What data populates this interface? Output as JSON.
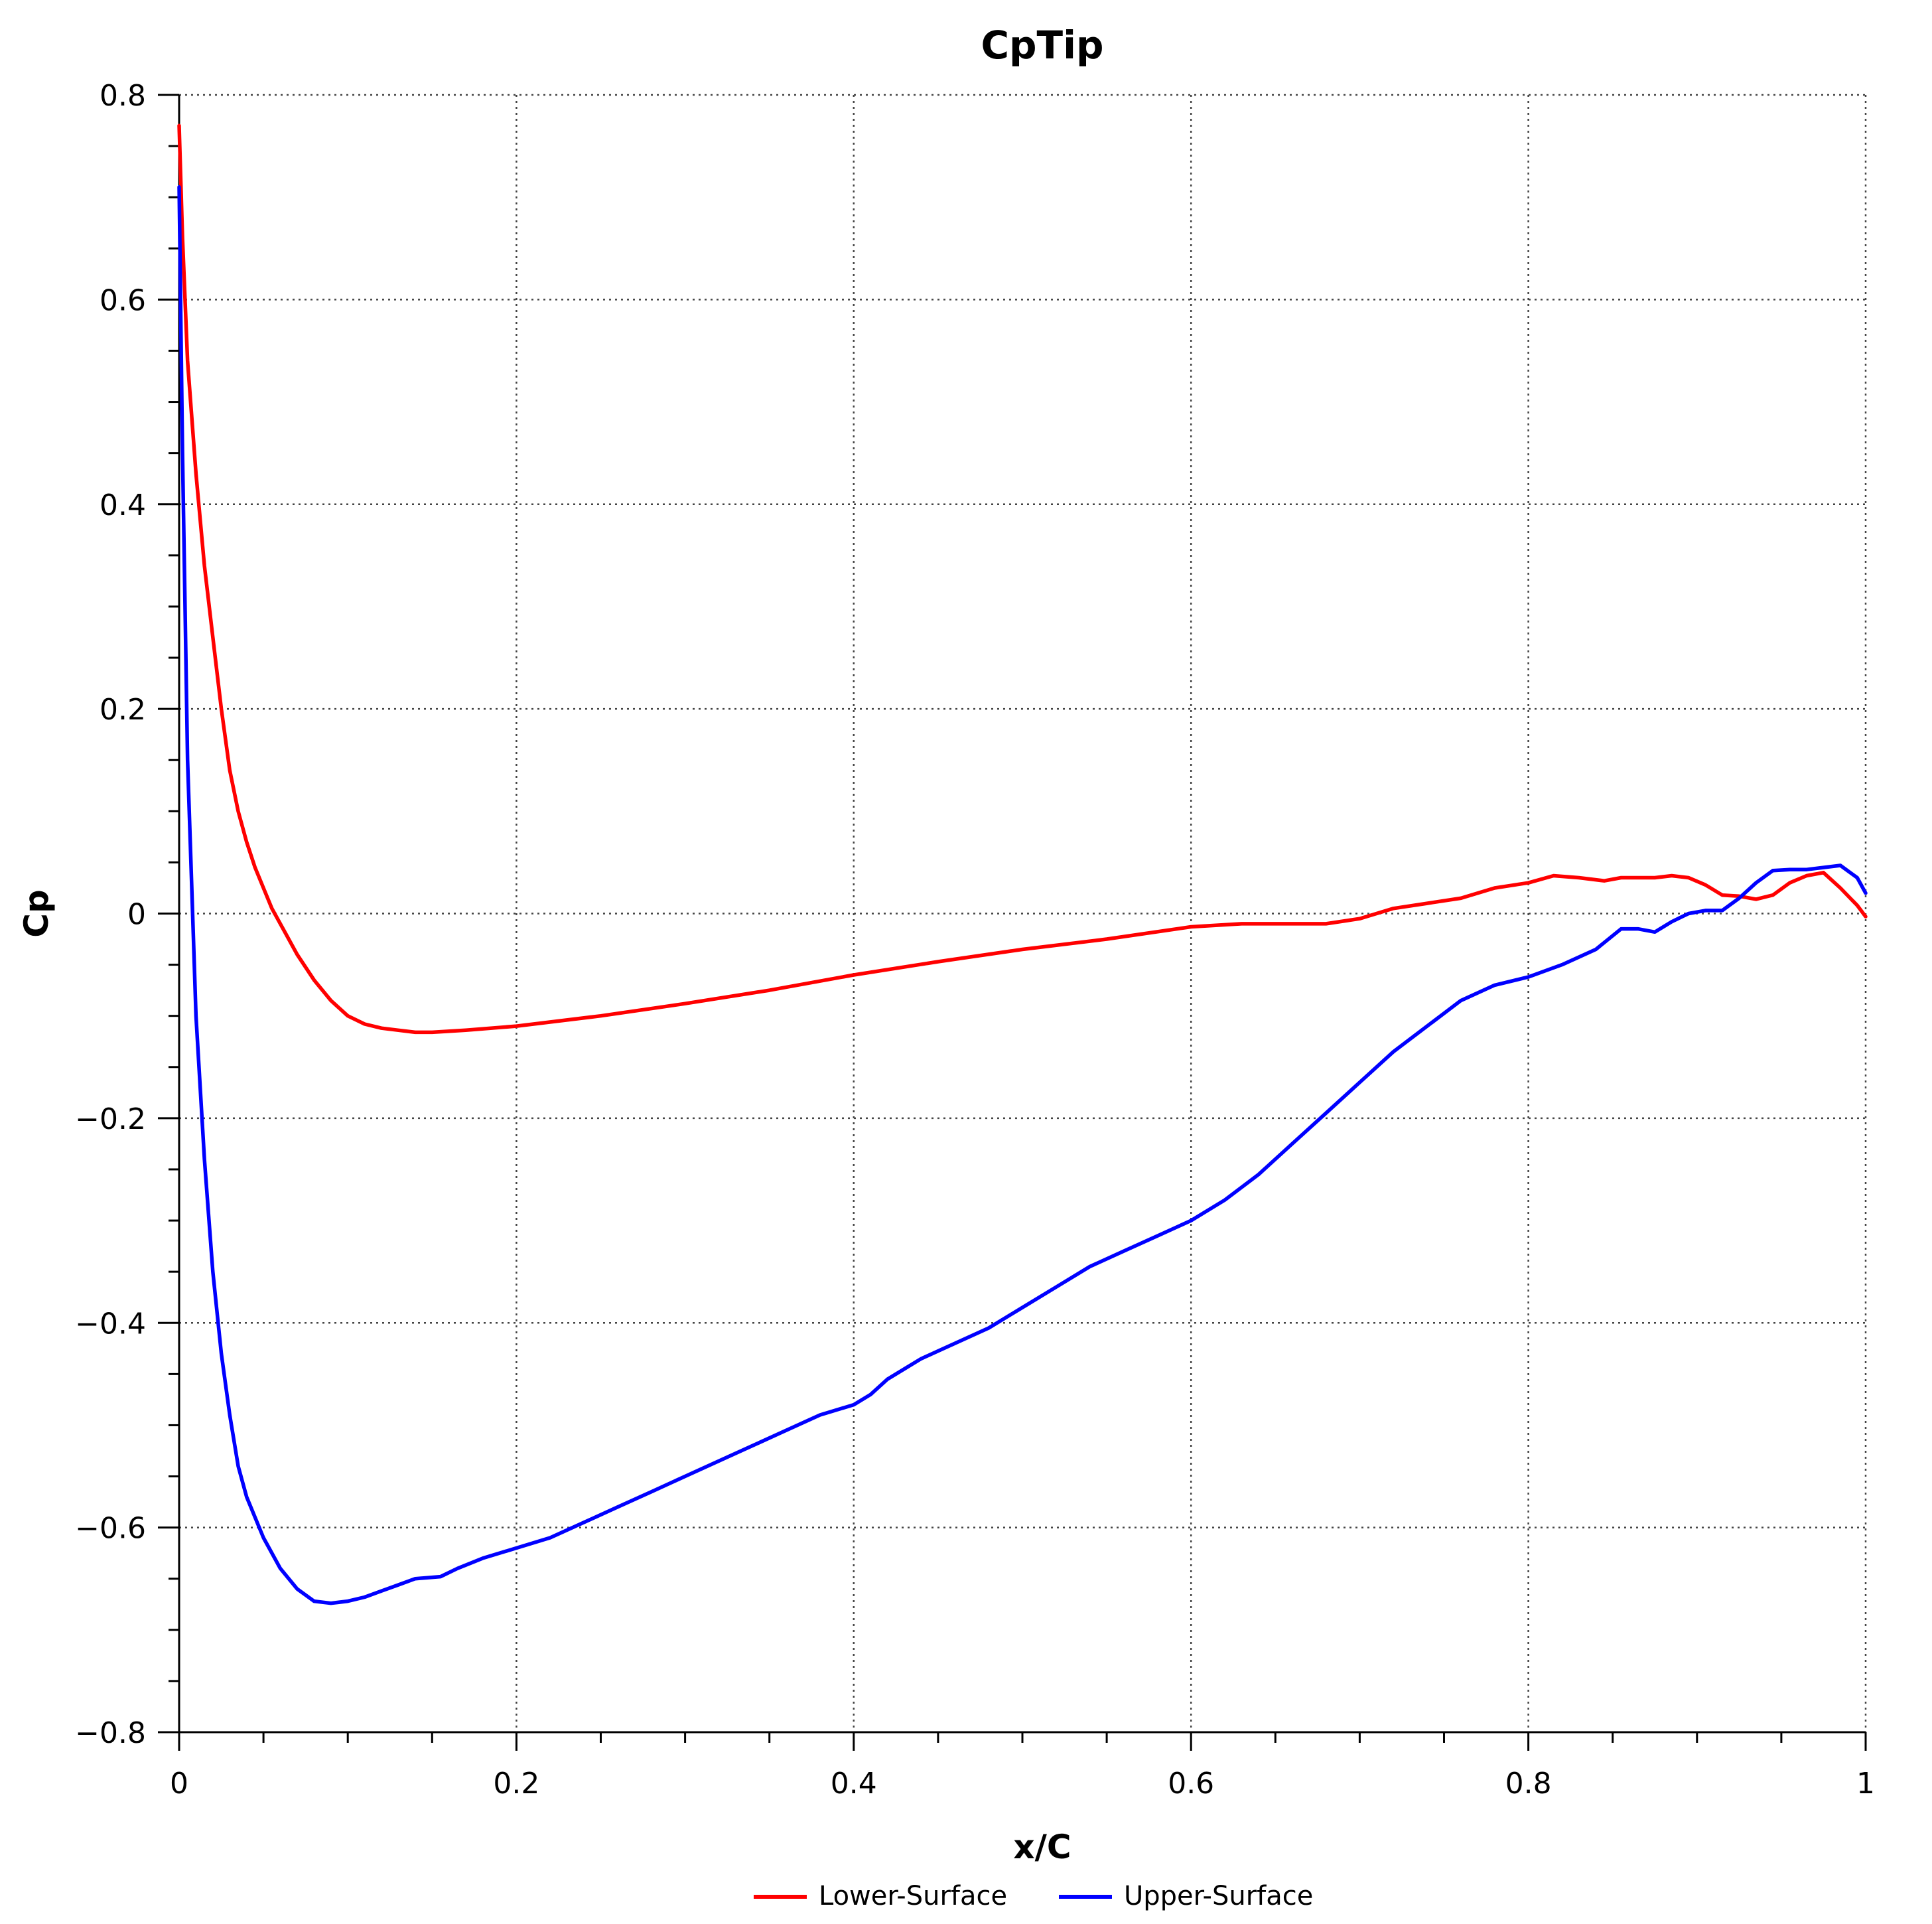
{
  "chart_data": {
    "type": "line",
    "title": "CpTip",
    "xlabel": "x/C",
    "ylabel": "Cp",
    "xlim": [
      0,
      1
    ],
    "ylim": [
      -0.8,
      0.8
    ],
    "x_ticks": [
      "0",
      "0.2",
      "0.4",
      "0.6",
      "0.8",
      "1"
    ],
    "y_ticks": [
      "0.8",
      "0.6",
      "0.4",
      "0.2",
      "0",
      "−0.2",
      "−0.4",
      "−0.6",
      "−0.8"
    ],
    "grid": true,
    "legend_position": "bottom-center",
    "series": [
      {
        "name": "Lower-Surface",
        "color": "#ff0000",
        "points": [
          [
            0.0,
            0.77
          ],
          [
            0.002,
            0.66
          ],
          [
            0.005,
            0.54
          ],
          [
            0.01,
            0.43
          ],
          [
            0.015,
            0.34
          ],
          [
            0.02,
            0.27
          ],
          [
            0.025,
            0.2
          ],
          [
            0.03,
            0.14
          ],
          [
            0.035,
            0.1
          ],
          [
            0.04,
            0.07
          ],
          [
            0.045,
            0.045
          ],
          [
            0.05,
            0.025
          ],
          [
            0.055,
            0.005
          ],
          [
            0.06,
            -0.01
          ],
          [
            0.07,
            -0.04
          ],
          [
            0.08,
            -0.065
          ],
          [
            0.09,
            -0.085
          ],
          [
            0.1,
            -0.1
          ],
          [
            0.11,
            -0.108
          ],
          [
            0.12,
            -0.112
          ],
          [
            0.13,
            -0.114
          ],
          [
            0.14,
            -0.116
          ],
          [
            0.15,
            -0.116
          ],
          [
            0.17,
            -0.114
          ],
          [
            0.2,
            -0.11
          ],
          [
            0.25,
            -0.1
          ],
          [
            0.3,
            -0.088
          ],
          [
            0.35,
            -0.075
          ],
          [
            0.4,
            -0.06
          ],
          [
            0.45,
            -0.047
          ],
          [
            0.5,
            -0.035
          ],
          [
            0.55,
            -0.025
          ],
          [
            0.6,
            -0.013
          ],
          [
            0.63,
            -0.01
          ],
          [
            0.66,
            -0.01
          ],
          [
            0.68,
            -0.01
          ],
          [
            0.7,
            -0.005
          ],
          [
            0.72,
            0.005
          ],
          [
            0.74,
            0.01
          ],
          [
            0.76,
            0.015
          ],
          [
            0.78,
            0.025
          ],
          [
            0.8,
            0.03
          ],
          [
            0.815,
            0.037
          ],
          [
            0.83,
            0.035
          ],
          [
            0.845,
            0.032
          ],
          [
            0.855,
            0.035
          ],
          [
            0.865,
            0.035
          ],
          [
            0.875,
            0.035
          ],
          [
            0.885,
            0.037
          ],
          [
            0.895,
            0.035
          ],
          [
            0.905,
            0.028
          ],
          [
            0.915,
            0.018
          ],
          [
            0.925,
            0.017
          ],
          [
            0.935,
            0.014
          ],
          [
            0.945,
            0.018
          ],
          [
            0.955,
            0.03
          ],
          [
            0.965,
            0.037
          ],
          [
            0.975,
            0.04
          ],
          [
            0.985,
            0.025
          ],
          [
            0.995,
            0.008
          ],
          [
            1.0,
            -0.003
          ]
        ]
      },
      {
        "name": "Upper-Surface",
        "color": "#0000ff",
        "points": [
          [
            0.0,
            0.71
          ],
          [
            0.002,
            0.45
          ],
          [
            0.005,
            0.15
          ],
          [
            0.01,
            -0.1
          ],
          [
            0.015,
            -0.24
          ],
          [
            0.02,
            -0.35
          ],
          [
            0.025,
            -0.43
          ],
          [
            0.03,
            -0.49
          ],
          [
            0.035,
            -0.54
          ],
          [
            0.04,
            -0.57
          ],
          [
            0.05,
            -0.61
          ],
          [
            0.06,
            -0.64
          ],
          [
            0.07,
            -0.66
          ],
          [
            0.08,
            -0.672
          ],
          [
            0.09,
            -0.674
          ],
          [
            0.1,
            -0.672
          ],
          [
            0.11,
            -0.668
          ],
          [
            0.12,
            -0.662
          ],
          [
            0.13,
            -0.656
          ],
          [
            0.14,
            -0.65
          ],
          [
            0.155,
            -0.648
          ],
          [
            0.165,
            -0.64
          ],
          [
            0.18,
            -0.63
          ],
          [
            0.2,
            -0.62
          ],
          [
            0.22,
            -0.61
          ],
          [
            0.24,
            -0.595
          ],
          [
            0.26,
            -0.58
          ],
          [
            0.28,
            -0.565
          ],
          [
            0.3,
            -0.55
          ],
          [
            0.32,
            -0.535
          ],
          [
            0.34,
            -0.52
          ],
          [
            0.36,
            -0.505
          ],
          [
            0.38,
            -0.49
          ],
          [
            0.4,
            -0.48
          ],
          [
            0.41,
            -0.47
          ],
          [
            0.42,
            -0.455
          ],
          [
            0.43,
            -0.445
          ],
          [
            0.44,
            -0.435
          ],
          [
            0.46,
            -0.42
          ],
          [
            0.48,
            -0.405
          ],
          [
            0.5,
            -0.385
          ],
          [
            0.52,
            -0.365
          ],
          [
            0.54,
            -0.345
          ],
          [
            0.56,
            -0.33
          ],
          [
            0.58,
            -0.315
          ],
          [
            0.6,
            -0.3
          ],
          [
            0.62,
            -0.28
          ],
          [
            0.64,
            -0.255
          ],
          [
            0.66,
            -0.225
          ],
          [
            0.68,
            -0.195
          ],
          [
            0.7,
            -0.165
          ],
          [
            0.72,
            -0.135
          ],
          [
            0.74,
            -0.11
          ],
          [
            0.76,
            -0.085
          ],
          [
            0.78,
            -0.07
          ],
          [
            0.8,
            -0.062
          ],
          [
            0.82,
            -0.05
          ],
          [
            0.84,
            -0.035
          ],
          [
            0.855,
            -0.015
          ],
          [
            0.865,
            -0.015
          ],
          [
            0.875,
            -0.018
          ],
          [
            0.885,
            -0.008
          ],
          [
            0.895,
            0.0
          ],
          [
            0.905,
            0.003
          ],
          [
            0.915,
            0.003
          ],
          [
            0.925,
            0.015
          ],
          [
            0.935,
            0.03
          ],
          [
            0.945,
            0.042
          ],
          [
            0.955,
            0.043
          ],
          [
            0.965,
            0.043
          ],
          [
            0.975,
            0.045
          ],
          [
            0.985,
            0.047
          ],
          [
            0.995,
            0.035
          ],
          [
            1.0,
            0.02
          ]
        ]
      }
    ]
  }
}
